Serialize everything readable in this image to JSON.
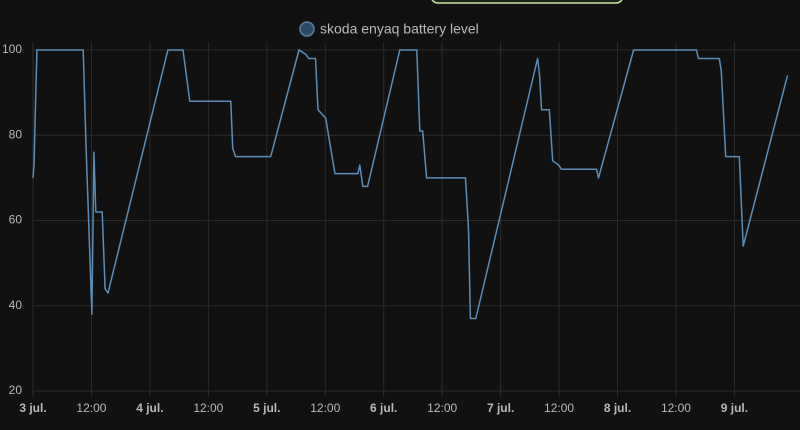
{
  "chart_data": {
    "type": "line",
    "series": [
      {
        "name": "skoda enyaq battery level",
        "color": "#5b8db8",
        "x": [
          0,
          0.2,
          0.8,
          10.3,
          10.9,
          12.1,
          12.5,
          12.9,
          14.2,
          14.8,
          15.4,
          27.7,
          30.8,
          32.2,
          40.6,
          41.0,
          41.6,
          48.8,
          54.6,
          56.0,
          56.6,
          58.0,
          58.5,
          60.1,
          61.4,
          62.0,
          66.7,
          67.1,
          67.7,
          68.7,
          75.3,
          78.8,
          79.4,
          80.0,
          80.8,
          88.8,
          89.4,
          89.8,
          90.9,
          103.6,
          104.0,
          104.4,
          106.0,
          106.7,
          107.9,
          108.5,
          115.7,
          116.1,
          123.3,
          136.2,
          136.6,
          140.9,
          141.3,
          142.2,
          145.0,
          145.8,
          154.9
        ],
        "values": [
          70,
          73,
          100,
          100,
          77,
          38,
          76,
          62,
          62,
          44,
          43,
          100,
          100,
          88,
          88,
          77,
          75,
          75,
          100,
          99,
          98,
          98,
          86,
          84,
          75,
          71,
          71,
          73,
          68,
          68,
          100,
          100,
          81,
          81,
          70,
          70,
          58,
          37,
          37,
          98,
          94,
          86,
          86,
          74,
          73,
          72,
          72,
          70,
          100,
          100,
          98,
          98,
          95,
          75,
          75,
          54,
          94
        ]
      }
    ],
    "xlim": [
      0,
      155
    ],
    "xticks": [
      {
        "value": 0,
        "label": "3 jul."
      },
      {
        "value": 12,
        "label": "12:00"
      },
      {
        "value": 24,
        "label": "4 jul."
      },
      {
        "value": 36,
        "label": "12:00"
      },
      {
        "value": 48,
        "label": "5 jul."
      },
      {
        "value": 60,
        "label": "12:00"
      },
      {
        "value": 72,
        "label": "6 jul."
      },
      {
        "value": 84,
        "label": "12:00"
      },
      {
        "value": 96,
        "label": "7 jul."
      },
      {
        "value": 108,
        "label": "12:00"
      },
      {
        "value": 120,
        "label": "8 jul."
      },
      {
        "value": 132,
        "label": "12:00"
      },
      {
        "value": 144,
        "label": "9 jul."
      }
    ],
    "ylim": [
      20,
      100
    ],
    "yticks": [
      20,
      40,
      60,
      80,
      100
    ],
    "grid": true
  }
}
